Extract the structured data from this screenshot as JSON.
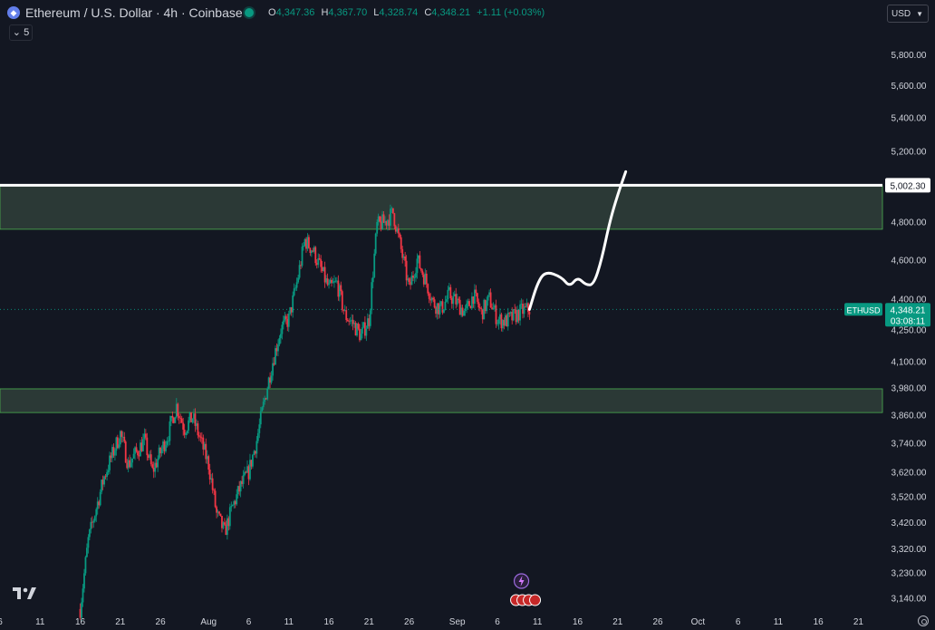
{
  "header": {
    "symbol_title": "Ethereum / U.S. Dollar · 4h · Coinbase",
    "ohlc": {
      "o_label": "O",
      "o_value": "4,347.36",
      "h_label": "H",
      "h_value": "4,367.70",
      "l_label": "L",
      "l_value": "4,328.74",
      "c_label": "C",
      "c_value": "4,348.21",
      "change": "+1.11 (+0.03%)"
    },
    "indicator_count": "5",
    "currency": "USD"
  },
  "colors": {
    "background": "#131722",
    "up": "#089981",
    "down": "#f23645",
    "zone_fill": "#2f3d38",
    "zone_border": "#4caf50",
    "resistance_line": "#ffffff",
    "price_tag": "#089981"
  },
  "icons": [
    "ethereum-icon",
    "status-dot-icon",
    "chevron-down-icon",
    "tradingview-logo-icon",
    "settings-icon",
    "lightning-icon",
    "us-flag-icon"
  ],
  "chart_data": {
    "type": "candlestick",
    "title": "",
    "xlabel": "",
    "ylabel": "",
    "price_scale_type": "log",
    "y_range": [
      3090,
      5980
    ],
    "y_ticks": [
      5800,
      5600,
      5400,
      5200,
      4800,
      4600,
      4400,
      4250,
      4100,
      3980,
      3860,
      3740,
      3620,
      3520,
      3420,
      3320,
      3230,
      3140
    ],
    "y_tick_labels": [
      "5,800.00",
      "5,600.00",
      "5,400.00",
      "5,200.00",
      "4,800.00",
      "4,600.00",
      "4,400.00",
      "4,250.00",
      "4,100.00",
      "3,980.00",
      "3,860.00",
      "3,740.00",
      "3,620.00",
      "3,520.00",
      "3,420.00",
      "3,320.00",
      "3,230.00",
      "3,140.00"
    ],
    "x_range": [
      "2025-07-06",
      "2025-10-24"
    ],
    "x_ticks": [
      "2025-07-06",
      "2025-07-11",
      "2025-07-16",
      "2025-07-21",
      "2025-07-26",
      "2025-08-01",
      "2025-08-06",
      "2025-08-11",
      "2025-08-16",
      "2025-08-21",
      "2025-08-26",
      "2025-09-01",
      "2025-09-06",
      "2025-09-11",
      "2025-09-16",
      "2025-09-21",
      "2025-09-26",
      "2025-10-01",
      "2025-10-06",
      "2025-10-11",
      "2025-10-16",
      "2025-10-21"
    ],
    "x_tick_labels": [
      "6",
      "11",
      "16",
      "21",
      "26",
      "Aug",
      "6",
      "11",
      "16",
      "21",
      "26",
      "Sep",
      "6",
      "11",
      "16",
      "21",
      "26",
      "Oct",
      "6",
      "11",
      "16",
      "21"
    ],
    "path": [
      [
        "2025-07-16",
        3100
      ],
      [
        "2025-07-17",
        3350
      ],
      [
        "2025-07-19",
        3600
      ],
      [
        "2025-07-21",
        3780
      ],
      [
        "2025-07-22",
        3650
      ],
      [
        "2025-07-24",
        3750
      ],
      [
        "2025-07-25",
        3620
      ],
      [
        "2025-07-27",
        3780
      ],
      [
        "2025-07-28",
        3900
      ],
      [
        "2025-07-29",
        3800
      ],
      [
        "2025-07-30",
        3850
      ],
      [
        "2025-08-01",
        3650
      ],
      [
        "2025-08-02",
        3450
      ],
      [
        "2025-08-03",
        3380
      ],
      [
        "2025-08-04",
        3480
      ],
      [
        "2025-08-05",
        3560
      ],
      [
        "2025-08-06",
        3620
      ],
      [
        "2025-08-07",
        3750
      ],
      [
        "2025-08-08",
        3930
      ],
      [
        "2025-08-09",
        4100
      ],
      [
        "2025-08-10",
        4250
      ],
      [
        "2025-08-11",
        4300
      ],
      [
        "2025-08-12",
        4480
      ],
      [
        "2025-08-13",
        4700
      ],
      [
        "2025-08-14",
        4650
      ],
      [
        "2025-08-15",
        4550
      ],
      [
        "2025-08-16",
        4450
      ],
      [
        "2025-08-17",
        4480
      ],
      [
        "2025-08-18",
        4320
      ],
      [
        "2025-08-19",
        4280
      ],
      [
        "2025-08-20",
        4220
      ],
      [
        "2025-08-21",
        4300
      ],
      [
        "2025-08-22",
        4780
      ],
      [
        "2025-08-23",
        4800
      ],
      [
        "2025-08-24",
        4850
      ],
      [
        "2025-08-25",
        4650
      ],
      [
        "2025-08-26",
        4450
      ],
      [
        "2025-08-27",
        4600
      ],
      [
        "2025-08-28",
        4500
      ],
      [
        "2025-08-29",
        4380
      ],
      [
        "2025-08-30",
        4350
      ],
      [
        "2025-08-31",
        4420
      ],
      [
        "2025-09-01",
        4380
      ],
      [
        "2025-09-02",
        4330
      ],
      [
        "2025-09-03",
        4420
      ],
      [
        "2025-09-04",
        4330
      ],
      [
        "2025-09-05",
        4400
      ],
      [
        "2025-09-06",
        4300
      ],
      [
        "2025-09-07",
        4290
      ],
      [
        "2025-09-08",
        4310
      ],
      [
        "2025-09-09",
        4340
      ],
      [
        "2025-09-10",
        4348.21
      ]
    ],
    "annotations": {
      "resistance_line": {
        "price": 5002.3,
        "label": "5,002.30"
      },
      "zones": [
        {
          "name": "upper-supply-zone",
          "top": 5000,
          "bottom": 4760
        },
        {
          "name": "lower-demand-zone",
          "top": 3975,
          "bottom": 3870
        }
      ],
      "current_price": {
        "symbol_label": "ETHUSD",
        "price_label": "4,348.21",
        "countdown": "03:08:11",
        "price": 4348.21
      },
      "projection": [
        [
          "2025-09-10",
          4348
        ],
        [
          "2025-09-11",
          4480
        ],
        [
          "2025-09-12",
          4540
        ],
        [
          "2025-09-14",
          4510
        ],
        [
          "2025-09-15",
          4460
        ],
        [
          "2025-09-16",
          4510
        ],
        [
          "2025-09-17",
          4470
        ],
        [
          "2025-09-18",
          4470
        ],
        [
          "2025-09-19",
          4600
        ],
        [
          "2025-09-20",
          4800
        ],
        [
          "2025-09-21",
          4950
        ],
        [
          "2025-09-22",
          5080
        ]
      ]
    }
  }
}
